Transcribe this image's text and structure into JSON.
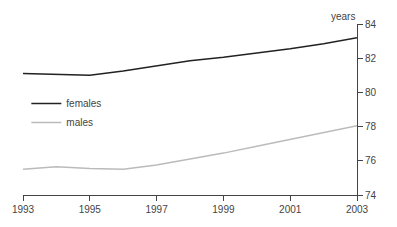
{
  "chart_data": {
    "type": "line",
    "x": [
      1993,
      1994,
      1995,
      1996,
      1997,
      1998,
      1999,
      2000,
      2001,
      2002,
      2003
    ],
    "series": [
      {
        "name": "females",
        "color": "#222222",
        "values": [
          81.1,
          81.05,
          81.0,
          81.25,
          81.55,
          81.85,
          82.05,
          82.3,
          82.55,
          82.85,
          83.2
        ]
      },
      {
        "name": "males",
        "color": "#bbbbbb",
        "values": [
          75.5,
          75.65,
          75.55,
          75.5,
          75.75,
          76.1,
          76.45,
          76.85,
          77.25,
          77.65,
          78.05
        ]
      }
    ],
    "ylabel": "years",
    "xlim": [
      1993,
      2003
    ],
    "xticks": [
      1993,
      1995,
      1997,
      1999,
      2001,
      2003
    ],
    "ylim": [
      74,
      84
    ],
    "yticks": [
      74,
      76,
      78,
      80,
      82,
      84
    ],
    "grid": false,
    "legend": "left"
  }
}
